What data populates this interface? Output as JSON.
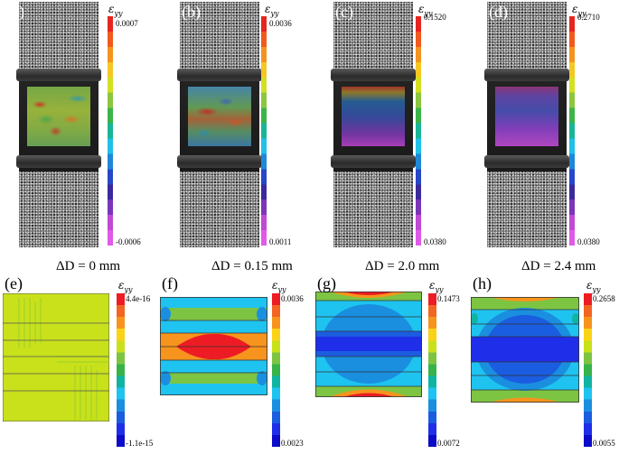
{
  "symbol": "εyy",
  "symbol_main": "ε",
  "symbol_sub": "yy",
  "top_row": [
    {
      "label": "(a)",
      "max": "0.0007",
      "min": "-0.0006",
      "caption": "ΔD = 0 mm"
    },
    {
      "label": "(b)",
      "max": "0.0036",
      "min": "0.0011",
      "caption": "ΔD = 0.15 mm"
    },
    {
      "label": "(c)",
      "max": "0.1520",
      "min": "0.0380",
      "caption": "ΔD = 2.0 mm"
    },
    {
      "label": "(d)",
      "max": "0.2710",
      "min": "0.0380",
      "caption": "ΔD = 2.4 mm"
    }
  ],
  "bottom_row": [
    {
      "label": "(e)",
      "max": "4.4e-16",
      "min": "-1.1e-15"
    },
    {
      "label": "(f)",
      "max": "0.0036",
      "min": "0.0023"
    },
    {
      "label": "(g)",
      "max": "0.1473",
      "min": "0.0072"
    },
    {
      "label": "(h)",
      "max": "0.2658",
      "min": "0.0055"
    }
  ],
  "colors": {
    "jet_top": [
      "#e4261f",
      "#f05a1e",
      "#f39420",
      "#f5c723",
      "#d3e021",
      "#8cc63e",
      "#3db449",
      "#19b597",
      "#20c0e8",
      "#1e88d8",
      "#2747c8",
      "#3a2a9c",
      "#7a35b8",
      "#c04ad4",
      "#e05ae8"
    ],
    "jet_bottom": [
      "#ed1c24",
      "#f26522",
      "#f7941d",
      "#fbd316",
      "#c8e11b",
      "#7dc443",
      "#37b34a",
      "#10b4a2",
      "#1ec3f0",
      "#1a8fe0",
      "#1b5de0",
      "#1f2ee8",
      "#0b0bc8"
    ]
  }
}
